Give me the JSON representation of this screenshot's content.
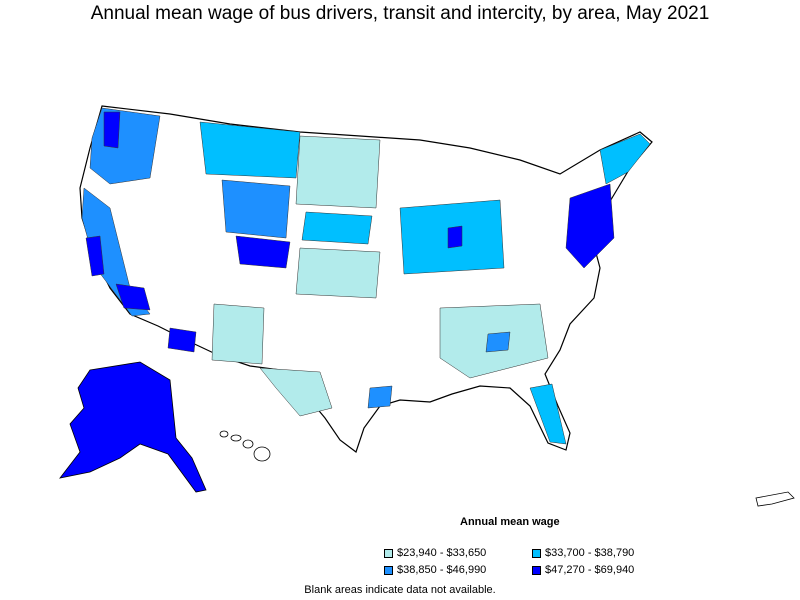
{
  "title": "Annual mean wage of bus drivers, transit and intercity, by area, May 2021",
  "legend": {
    "title": "Annual mean wage",
    "items": [
      {
        "label": "$23,940 - $33,650",
        "color": "#b2ebeb"
      },
      {
        "label": "$33,700 - $38,790",
        "color": "#00bfff"
      },
      {
        "label": "$38,850 - $46,990",
        "color": "#1e90ff"
      },
      {
        "label": "$47,270 - $69,940",
        "color": "#0000ff"
      }
    ]
  },
  "footnote": "Blank areas indicate data not available."
}
